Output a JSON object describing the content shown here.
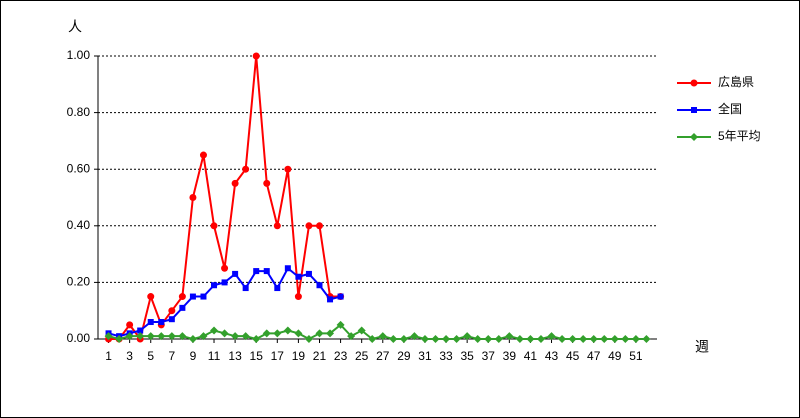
{
  "chart_data": {
    "type": "line",
    "y_label": "人",
    "x_label": "週",
    "x": [
      1,
      2,
      3,
      4,
      5,
      6,
      7,
      8,
      9,
      10,
      11,
      12,
      13,
      14,
      15,
      16,
      17,
      18,
      19,
      20,
      21,
      22,
      23,
      24,
      25,
      26,
      27,
      28,
      29,
      30,
      31,
      32,
      33,
      34,
      35,
      36,
      37,
      38,
      39,
      40,
      41,
      42,
      43,
      44,
      45,
      46,
      47,
      48,
      49,
      50,
      51,
      52
    ],
    "xlim": [
      0,
      53
    ],
    "xticks": [
      1,
      3,
      5,
      7,
      9,
      11,
      13,
      15,
      17,
      19,
      21,
      23,
      25,
      27,
      29,
      31,
      33,
      35,
      37,
      39,
      41,
      43,
      45,
      47,
      49,
      51
    ],
    "ylim": [
      0,
      1
    ],
    "yticks": [
      {
        "value": 0,
        "label": "0.00"
      },
      {
        "value": 0.2,
        "label": "0.20"
      },
      {
        "value": 0.4,
        "label": "0.40"
      },
      {
        "value": 0.6,
        "label": "0.60"
      },
      {
        "value": 0.8,
        "label": "0.80"
      },
      {
        "value": 1,
        "label": "1.00"
      }
    ],
    "grid": true,
    "legend": "right",
    "series": [
      {
        "name": "広島県",
        "color": "#ff0000",
        "marker": "circle",
        "values": [
          0,
          0,
          0.05,
          0,
          0.15,
          0.05,
          0.1,
          0.15,
          0.5,
          0.65,
          0.4,
          0.25,
          0.55,
          0.6,
          1.0,
          0.55,
          0.4,
          0.6,
          0.15,
          0.4,
          0.4,
          0.15,
          0.15,
          null,
          null,
          null,
          null,
          null,
          null,
          null,
          null,
          null,
          null,
          null,
          null,
          null,
          null,
          null,
          null,
          null,
          null,
          null,
          null,
          null,
          null,
          null,
          null,
          null,
          null,
          null,
          null,
          null
        ]
      },
      {
        "name": "全国",
        "color": "#0000ff",
        "marker": "square",
        "values": [
          0.02,
          0.01,
          0.02,
          0.03,
          0.06,
          0.06,
          0.07,
          0.11,
          0.15,
          0.15,
          0.19,
          0.2,
          0.23,
          0.18,
          0.24,
          0.24,
          0.18,
          0.25,
          0.22,
          0.23,
          0.19,
          0.14,
          0.15,
          null,
          null,
          null,
          null,
          null,
          null,
          null,
          null,
          null,
          null,
          null,
          null,
          null,
          null,
          null,
          null,
          null,
          null,
          null,
          null,
          null,
          null,
          null,
          null,
          null,
          null,
          null,
          null,
          null
        ]
      },
      {
        "name": "5年平均",
        "color": "#33a02c",
        "marker": "diamond",
        "values": [
          0.01,
          0,
          0.01,
          0.01,
          0.01,
          0.01,
          0.01,
          0.01,
          0,
          0.01,
          0.03,
          0.02,
          0.01,
          0.01,
          0,
          0.02,
          0.02,
          0.03,
          0.02,
          0,
          0.02,
          0.02,
          0.05,
          0.01,
          0.03,
          0,
          0.01,
          0,
          0,
          0.01,
          0,
          0,
          0,
          0,
          0.01,
          0,
          0,
          0,
          0.01,
          0,
          0,
          0,
          0.01,
          0,
          0,
          0,
          0,
          0,
          0,
          0,
          0,
          0
        ]
      }
    ]
  }
}
